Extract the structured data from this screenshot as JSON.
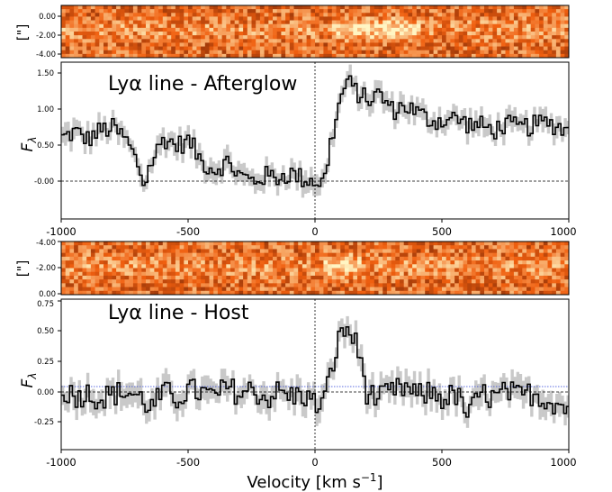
{
  "chart_data": [
    {
      "type": "heatmap",
      "panel": "afterglow-2d",
      "ylabel": "[\"]",
      "yticks": [
        "0.00",
        "-2.00",
        "-4.00"
      ],
      "ylim": [
        -4.0,
        0.5
      ],
      "xlim": [
        -1000,
        1000
      ],
      "colormap": "orange-hot",
      "bright_region_kms": [
        60,
        420
      ]
    },
    {
      "type": "line",
      "panel": "afterglow-1d",
      "title": "Lyα line - Afterglow",
      "ylabel": "F",
      "ylabel_sub": "λ",
      "xlim": [
        -1000,
        1000
      ],
      "ylim": [
        -0.45,
        1.62
      ],
      "yticks": [
        "-0.00",
        "0.50",
        "1.00",
        "1.50"
      ],
      "xticks": [
        "-1000",
        "-500",
        "0",
        "500",
        "1000"
      ],
      "series": [
        {
          "step": "mid",
          "x": [
            -1000,
            -950,
            -900,
            -850,
            -800,
            -750,
            -700,
            -680,
            -650,
            -600,
            -550,
            -500,
            -450,
            -400,
            -350,
            -300,
            -250,
            -200,
            -150,
            -100,
            -50,
            0,
            30,
            60,
            100,
            120,
            150,
            200,
            250,
            300,
            350,
            400,
            450,
            500,
            550,
            600,
            650,
            700,
            750,
            800,
            850,
            900,
            950,
            1000
          ],
          "y": [
            0.62,
            0.7,
            0.6,
            0.72,
            0.75,
            0.6,
            0.25,
            0.0,
            0.3,
            0.62,
            0.52,
            0.58,
            0.3,
            0.2,
            0.3,
            0.12,
            0.05,
            0.12,
            0.1,
            0.15,
            0.08,
            0.05,
            0.02,
            0.62,
            1.18,
            1.38,
            1.25,
            1.12,
            1.2,
            0.98,
            1.05,
            0.95,
            0.85,
            0.85,
            0.88,
            0.8,
            0.78,
            0.72,
            0.8,
            0.75,
            0.78,
            0.82,
            0.78,
            0.7
          ],
          "error": 0.12
        }
      ],
      "hlines": [
        0.0
      ],
      "vlines": [
        0
      ]
    },
    {
      "type": "heatmap",
      "panel": "host-2d",
      "ylabel": "[\"]",
      "yticks": [
        "-4.00",
        "-2.00",
        "0.00"
      ],
      "ylim": [
        -4.0,
        0.5
      ],
      "xlim": [
        -1000,
        1000
      ],
      "colormap": "orange-hot",
      "bright_region_kms": [
        40,
        180
      ]
    },
    {
      "type": "line",
      "panel": "host-1d",
      "title": "Lyα line - Host",
      "ylabel": "F",
      "ylabel_sub": "λ",
      "xlabel": "Velocity [km s",
      "xlabel_sup": "−1",
      "xlabel_end": "]",
      "xlim": [
        -1000,
        1000
      ],
      "ylim": [
        -0.45,
        0.88
      ],
      "yticks": [
        "-0.25",
        "0.00",
        "0.25",
        "0.50",
        "0.75"
      ],
      "xticks": [
        "-1000",
        "-500",
        "0",
        "500",
        "1000"
      ],
      "series": [
        {
          "step": "mid",
          "x": [
            -1000,
            -950,
            -900,
            -850,
            -800,
            -750,
            -700,
            -650,
            -600,
            -550,
            -500,
            -450,
            -400,
            -350,
            -300,
            -250,
            -200,
            -150,
            -100,
            -50,
            0,
            30,
            50,
            80,
            100,
            120,
            150,
            180,
            200,
            250,
            300,
            350,
            400,
            450,
            500,
            550,
            600,
            650,
            700,
            750,
            800,
            850,
            900,
            950,
            1000
          ],
          "y": [
            0.08,
            0.02,
            0.05,
            0.0,
            0.04,
            0.06,
            0.02,
            -0.08,
            0.06,
            0.0,
            0.08,
            0.05,
            0.02,
            0.1,
            0.04,
            0.08,
            0.0,
            0.06,
            0.02,
            0.04,
            -0.06,
            -0.02,
            0.15,
            0.45,
            0.58,
            0.62,
            0.52,
            0.3,
            0.05,
            0.0,
            0.06,
            0.1,
            0.02,
            0.06,
            0.0,
            0.04,
            -0.15,
            0.05,
            0.0,
            0.06,
            0.02,
            0.05,
            0.0,
            -0.04,
            -0.1
          ],
          "error": 0.1
        }
      ],
      "hlines": [
        0.0,
        0.03
      ],
      "vlines": [
        0
      ]
    }
  ]
}
